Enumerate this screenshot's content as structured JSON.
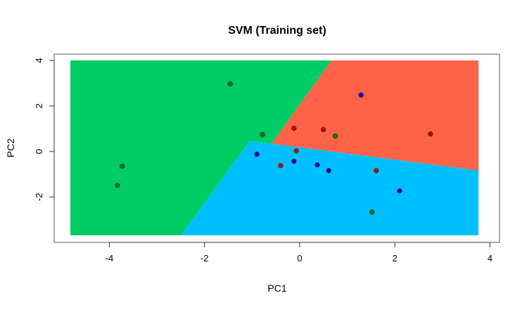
{
  "chart_data": {
    "type": "scatter",
    "title": "SVM (Training set)",
    "xlabel": "PC1",
    "ylabel": "PC2",
    "xlim": [
      -5.16,
      4.2
    ],
    "ylim": [
      -3.99,
      4.27
    ],
    "xticks": [
      -4,
      -2,
      0,
      2,
      4
    ],
    "yticks": [
      -2,
      0,
      2,
      4
    ],
    "grid": false,
    "region_colors": {
      "green": "#00cc66",
      "red": "#ff6347",
      "blue": "#00bfff"
    },
    "regions": [
      {
        "class": "green",
        "color": "#00cc66",
        "polygon": [
          [
            -4.82,
            4.0
          ],
          [
            0.67,
            4.0
          ],
          [
            -0.59,
            0.34
          ],
          [
            -1.05,
            0.46
          ],
          [
            -2.49,
            -3.68
          ],
          [
            -4.82,
            -3.68
          ]
        ]
      },
      {
        "class": "red",
        "color": "#ff6347",
        "polygon": [
          [
            0.67,
            4.0
          ],
          [
            3.76,
            4.0
          ],
          [
            3.76,
            -0.84
          ],
          [
            -0.59,
            0.34
          ]
        ]
      },
      {
        "class": "blue",
        "color": "#00bfff",
        "polygon": [
          [
            -1.05,
            0.46
          ],
          [
            -0.59,
            0.34
          ],
          [
            3.76,
            -0.84
          ],
          [
            3.76,
            -3.68
          ],
          [
            -2.49,
            -3.68
          ]
        ]
      }
    ],
    "series": [
      {
        "color": "#008000",
        "points": [
          [
            -1.46,
            2.97
          ],
          [
            -0.78,
            0.74
          ],
          [
            -3.73,
            -0.65
          ],
          [
            -3.83,
            -1.49
          ],
          [
            0.75,
            0.68
          ],
          [
            1.52,
            -2.66
          ]
        ]
      },
      {
        "color": "#cc0000",
        "points": [
          [
            -0.12,
            1.02
          ],
          [
            0.5,
            0.96
          ],
          [
            2.75,
            0.77
          ],
          [
            -0.07,
            0.03
          ],
          [
            -0.4,
            -0.62
          ],
          [
            1.61,
            -0.84
          ]
        ]
      },
      {
        "color": "#0000cc",
        "points": [
          [
            1.29,
            2.48
          ],
          [
            -0.9,
            -0.12
          ],
          [
            -0.12,
            -0.43
          ],
          [
            0.37,
            -0.59
          ],
          [
            0.61,
            -0.84
          ],
          [
            2.1,
            -1.73
          ]
        ]
      }
    ]
  }
}
